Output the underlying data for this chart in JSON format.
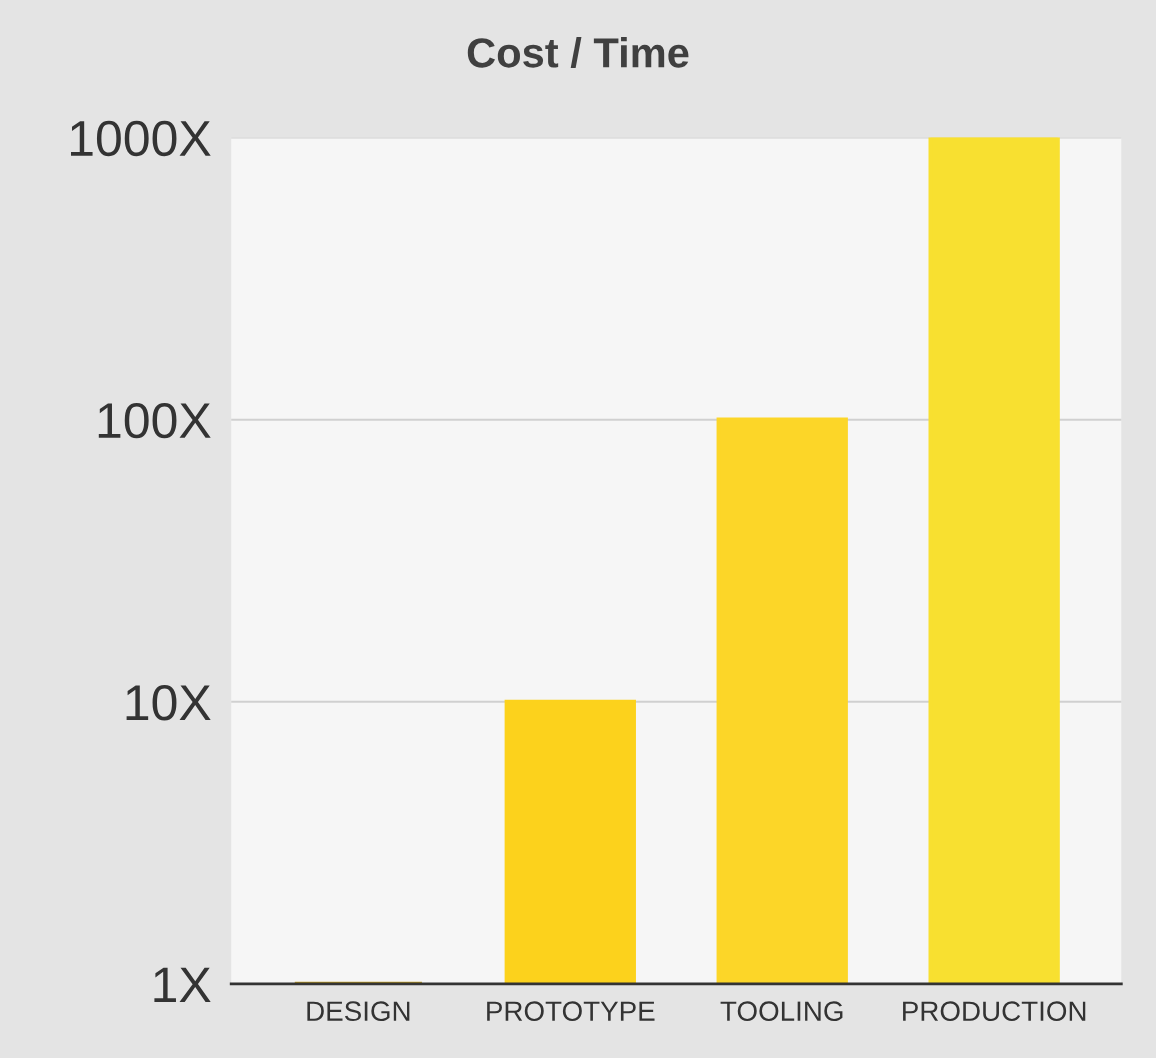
{
  "chart_data": {
    "type": "bar",
    "title": "Cost / Time",
    "log": "y",
    "categories": [
      "DESIGN",
      "PROTOTYPE",
      "TOOLING",
      "PRODUCTION"
    ],
    "values": [
      1,
      10,
      100,
      1000
    ],
    "colors": [
      "#c4a020",
      "#fcd21c",
      "#fcd628",
      "#f8e030"
    ],
    "ylim": [
      1,
      1000
    ],
    "yticks": [
      {
        "value": 1,
        "label": "1X"
      },
      {
        "value": 10,
        "label": "10X"
      },
      {
        "value": 100,
        "label": "100X"
      },
      {
        "value": 1000,
        "label": "1000X"
      }
    ],
    "grid": "y"
  }
}
